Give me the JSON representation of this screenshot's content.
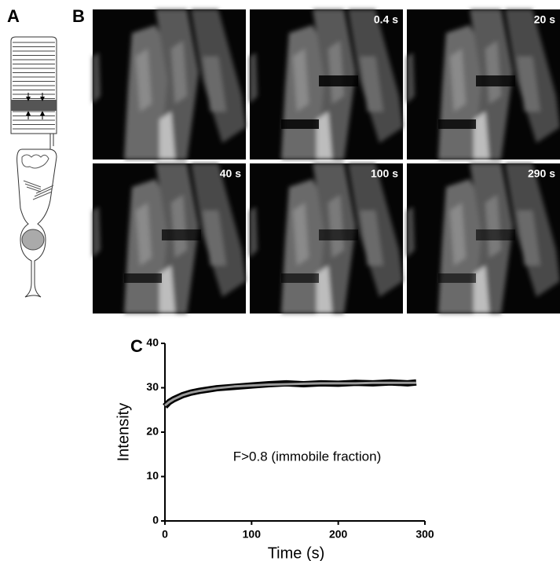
{
  "panel_labels": [
    "A",
    "B",
    "C"
  ],
  "frames": [
    "0.4 s",
    "20 s",
    "40 s",
    "100 s",
    "290 s"
  ],
  "chart_data": {
    "type": "line",
    "ylabel": "Intensity",
    "xlabel": "Time (s)",
    "annotation": "F>0.8 (immobile fraction)",
    "x": [
      0,
      5,
      10,
      20,
      30,
      40,
      50,
      60,
      80,
      100,
      120,
      140,
      160,
      180,
      200,
      220,
      240,
      260,
      280,
      290
    ],
    "series": [
      {
        "color": "#000000",
        "values": [
          25.8,
          26.8,
          27.4,
          28.3,
          28.9,
          29.3,
          29.6,
          29.9,
          30.2,
          30.5,
          30.8,
          31.0,
          30.8,
          31.0,
          30.9,
          31.1,
          31.0,
          31.2,
          31.0,
          31.2
        ]
      },
      {
        "color": "#9a9a9a",
        "values": [
          26.0,
          26.8,
          27.4,
          28.3,
          28.9,
          29.3,
          29.6,
          29.9,
          30.3,
          30.5,
          30.7,
          30.8,
          30.9,
          31.0,
          31.0,
          31.0,
          31.1,
          31.1,
          31.1,
          31.1
        ]
      }
    ],
    "xlim": [
      0,
      300
    ],
    "xticks": [
      0,
      100,
      200,
      300
    ],
    "ylim": [
      0,
      40
    ],
    "yticks": [
      0,
      10,
      20,
      30,
      40
    ]
  }
}
